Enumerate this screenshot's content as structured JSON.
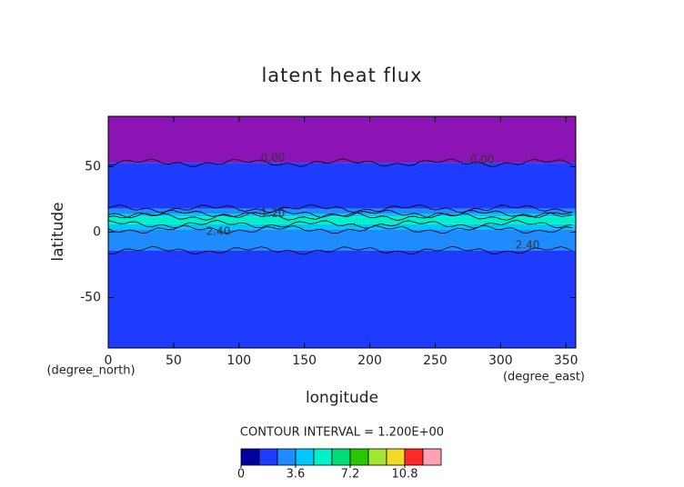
{
  "chart_data": {
    "type": "contour",
    "title": "latent heat flux",
    "x_label": "longitude",
    "y_label": "latitude",
    "x_unit": "(degree_east)",
    "y_unit": "(degree_north)",
    "xlim": [
      0,
      357.5
    ],
    "xticks": [
      0,
      50,
      100,
      150,
      200,
      250,
      300,
      350
    ],
    "ylim": [
      -88.5,
      88.5
    ],
    "yticks": [
      -50,
      0,
      50
    ],
    "lat_edges": [
      88.5,
      53,
      18,
      14,
      12,
      6,
      2,
      -14,
      -88.5
    ],
    "values": [
      -0.6,
      1.8,
      3.0,
      4.2,
      5.4,
      4.2,
      3.0,
      1.8
    ],
    "contour_labels": [
      "0.00",
      "0.00",
      "2.40",
      "1.20",
      "2.40"
    ],
    "interval_text": "CONTOUR INTERVAL = 1.200E+00",
    "levels": [
      0,
      1.2,
      2.4,
      3.6,
      4.8,
      6.0,
      7.2,
      8.4,
      9.6,
      10.8,
      12.0,
      13.2
    ],
    "colors": [
      "#0000a0",
      "#1e3cff",
      "#1e8cff",
      "#00c8ff",
      "#00f0c8",
      "#00dc78",
      "#28c800",
      "#a0e632",
      "#f0dc28",
      "#ff2828",
      "#ffa0b4"
    ],
    "under_color": "#8c14b4",
    "cbar_ticks": [
      0,
      3.6,
      7.2,
      10.8
    ]
  }
}
